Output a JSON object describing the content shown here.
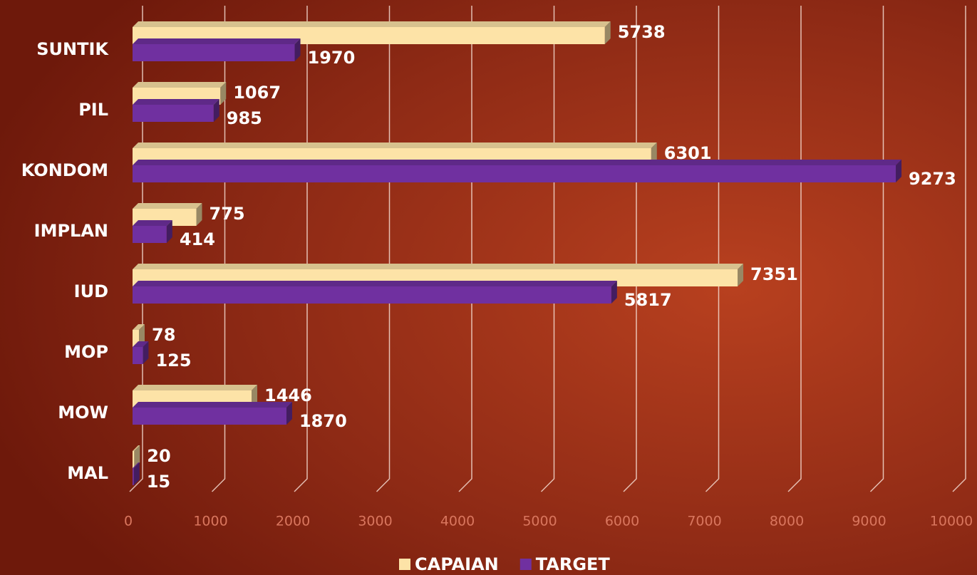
{
  "chart_data": {
    "type": "bar",
    "orientation": "horizontal",
    "categories": [
      "SUNTIK",
      "PIL",
      "KONDOM",
      "IMPLAN",
      "IUD",
      "MOP",
      "MOW",
      "MAL"
    ],
    "series": [
      {
        "name": "CAPAIAN",
        "color": "#fde3a7",
        "values": [
          5738,
          1067,
          6301,
          775,
          7351,
          78,
          1446,
          20
        ]
      },
      {
        "name": "TARGET",
        "color": "#7030a0",
        "values": [
          1970,
          985,
          9273,
          414,
          5817,
          125,
          1870,
          15
        ]
      }
    ],
    "xlim": [
      0,
      10000
    ],
    "xticks": [
      0,
      1000,
      2000,
      3000,
      4000,
      5000,
      6000,
      7000,
      8000,
      9000,
      10000
    ],
    "grid": true,
    "legend": "bottom"
  }
}
